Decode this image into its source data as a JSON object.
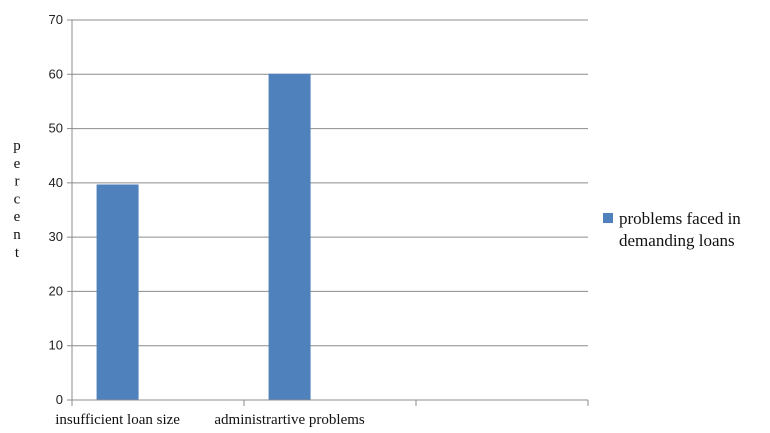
{
  "chart_data": {
    "type": "bar",
    "categories": [
      "insufficient loan size",
      "administrartive problems",
      ""
    ],
    "series": [
      {
        "name": "problems faced in demanding loans",
        "values": [
          39.7,
          60.1,
          null
        ],
        "color": "#4F81BD"
      }
    ],
    "ylabel": "percent",
    "xlabel": "",
    "ylim": [
      0,
      70
    ],
    "yticks": [
      0,
      10,
      20,
      30,
      40,
      50,
      60,
      70
    ],
    "grid": "horizontal",
    "legend_position": "right",
    "legend_lines": [
      "problems faced in",
      "demanding loans"
    ]
  }
}
